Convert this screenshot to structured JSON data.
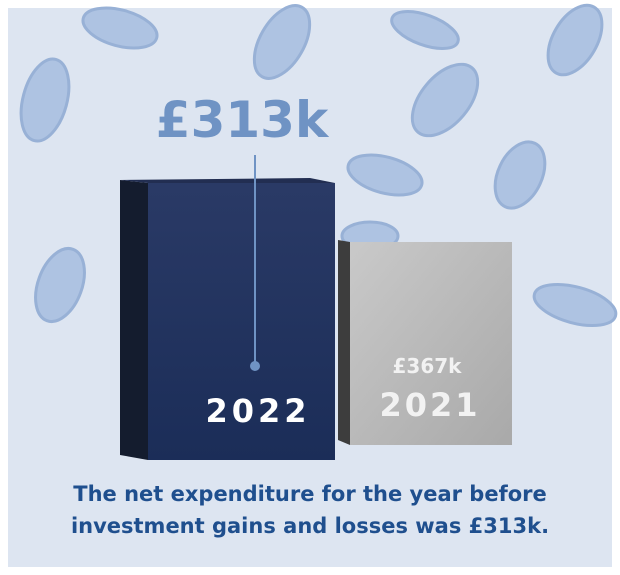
{
  "figure": {
    "headline": "£313k",
    "bars": [
      {
        "year": "2022",
        "value_label": "£313k"
      },
      {
        "year": "2021",
        "value_label": "£367k"
      }
    ],
    "caption": "The net expenditure for the year before investment gains and losses was £313k."
  }
}
